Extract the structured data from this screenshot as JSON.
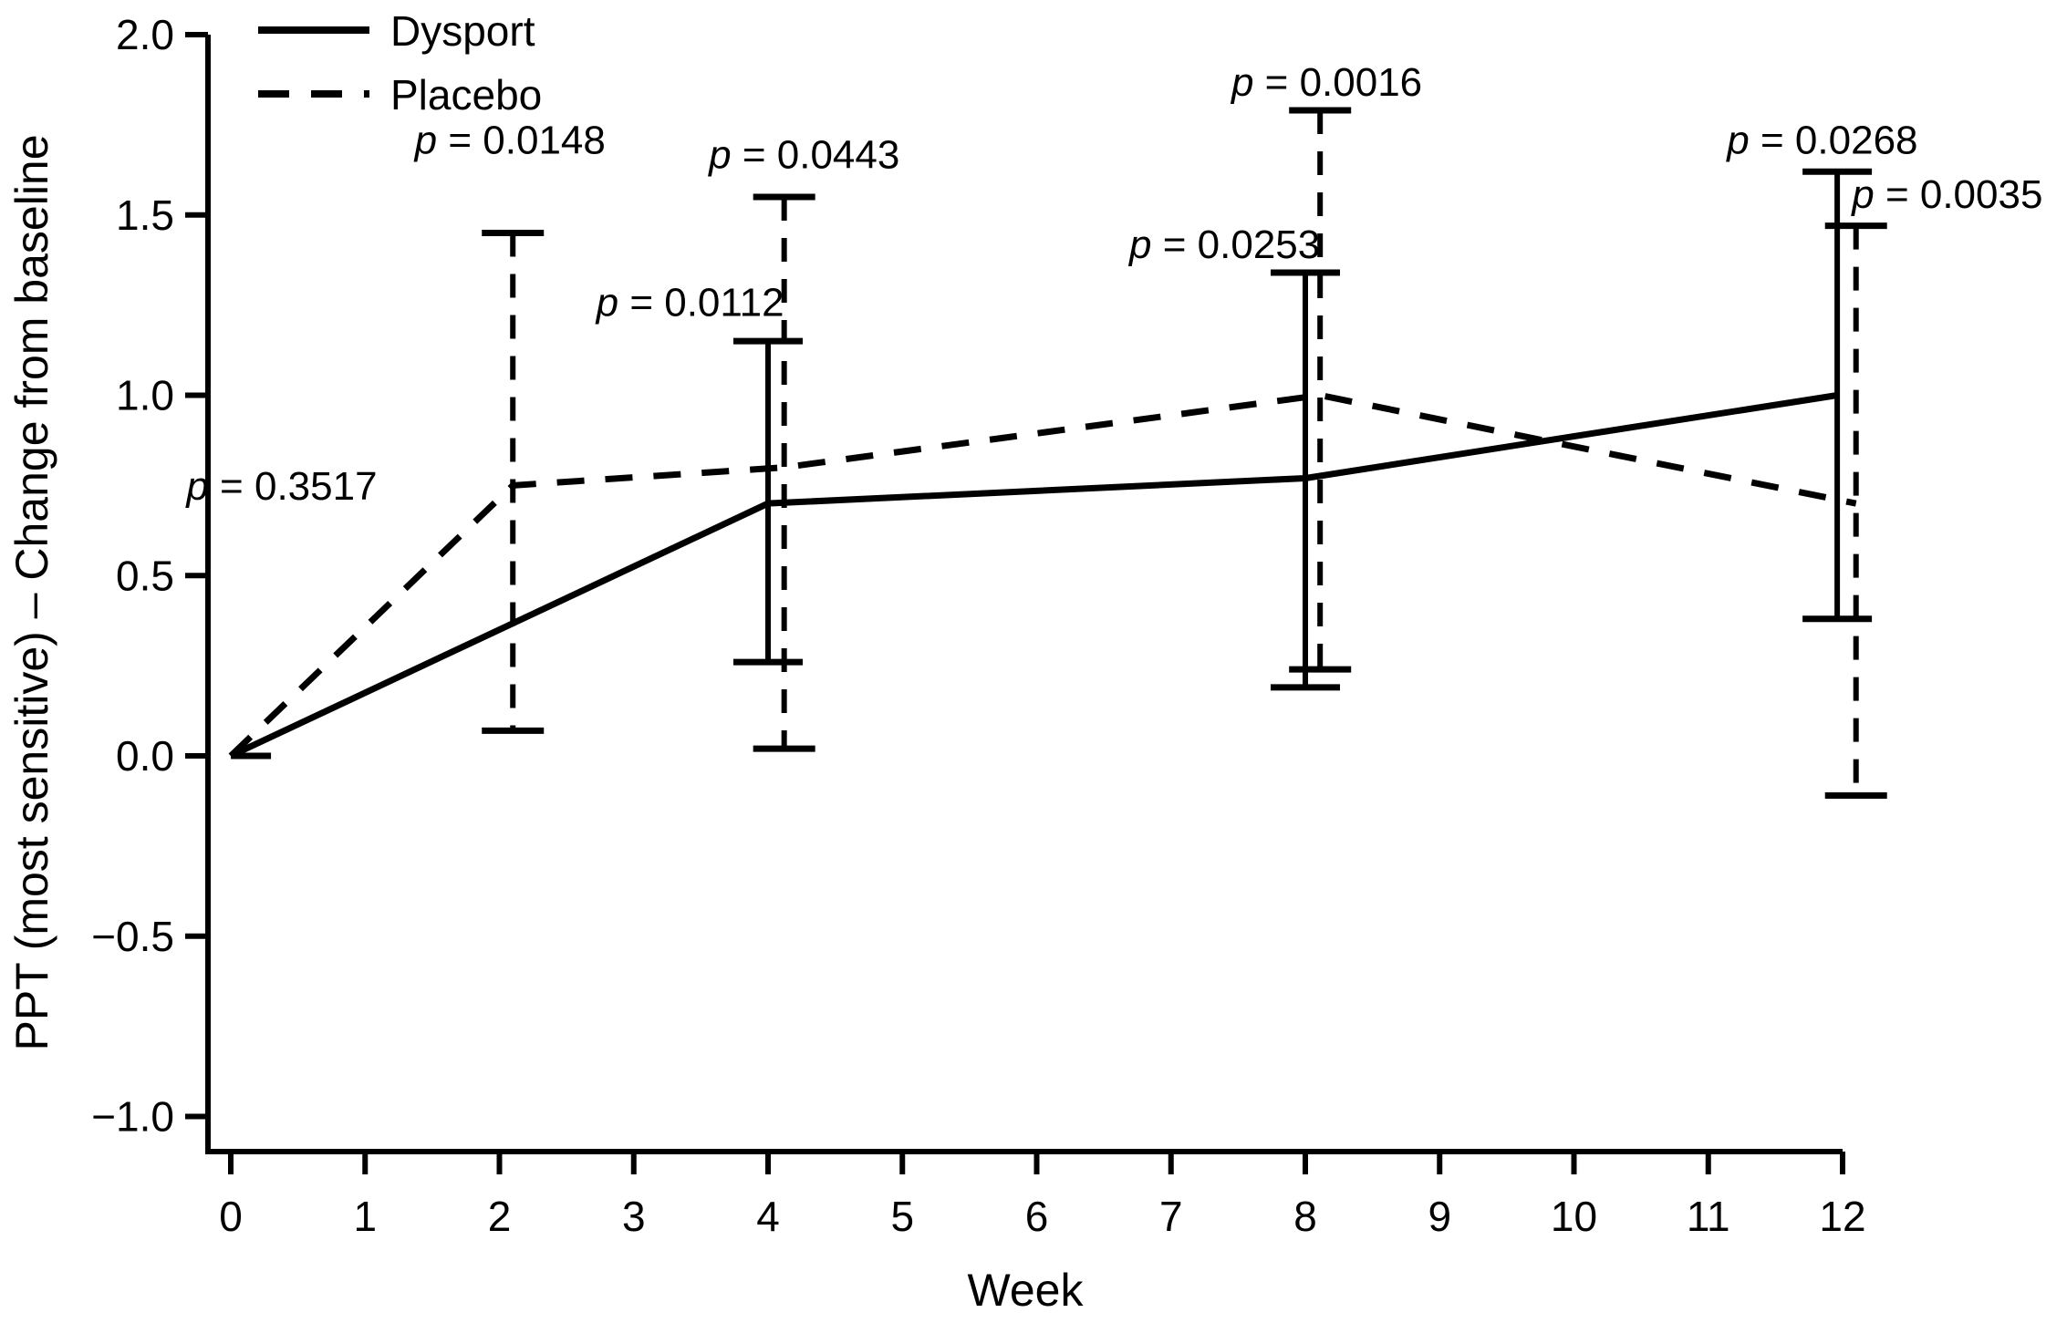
{
  "figure": {
    "background": "#ffffff",
    "ink_color": "#000000"
  },
  "legend": {
    "position": "top-left",
    "items": [
      {
        "label": "Dysport",
        "line_style": "solid"
      },
      {
        "label": "Placebo",
        "line_style": "dashed"
      }
    ]
  },
  "axes": {
    "x": {
      "label": "Week",
      "min": 0,
      "max": 12,
      "tick_step": 1,
      "tick_labels": [
        "0",
        "1",
        "2",
        "3",
        "4",
        "5",
        "6",
        "7",
        "8",
        "9",
        "10",
        "11",
        "12"
      ]
    },
    "y": {
      "label": "PPT (most sensitive) – Change from baseline",
      "min": -1.0,
      "max": 2.0,
      "tick_step": 0.5,
      "tick_labels": [
        "2.0",
        "1.5",
        "1.0",
        "0.5",
        "0.0",
        "−0.5",
        "−1.0"
      ]
    }
  },
  "chart_data": {
    "type": "line",
    "title": "",
    "xlabel": "Week",
    "ylabel": "PPT (most sensitive) – Change from baseline",
    "xlim": [
      0,
      12
    ],
    "ylim": [
      -1.0,
      2.0
    ],
    "grid": false,
    "legend_position": "top-left",
    "series": [
      {
        "name": "Dysport",
        "style": "solid",
        "x": [
          0,
          4,
          8,
          12
        ],
        "y": [
          0.0,
          0.7,
          0.77,
          1.0
        ],
        "x_offsets": [
          0,
          0,
          0,
          -0.04
        ],
        "error_bars": [
          {
            "x": 4,
            "x_offset": 0,
            "lo": 0.26,
            "hi": 1.15,
            "p_value": "p = 0.0112"
          },
          {
            "x": 8,
            "x_offset": 0,
            "lo": 0.19,
            "hi": 1.34,
            "p_value": "p = 0.0253"
          },
          {
            "x": 12,
            "x_offset": -0.04,
            "lo": 0.38,
            "hi": 1.62,
            "p_value": "p = 0.0268"
          }
        ]
      },
      {
        "name": "Placebo",
        "style": "dashed",
        "x": [
          0,
          2,
          4,
          8,
          12
        ],
        "y": [
          0.0,
          0.75,
          0.8,
          1.0,
          0.7
        ],
        "x_offsets": [
          0,
          0.1,
          0.12,
          0.11,
          0.1
        ],
        "error_bars": [
          {
            "x": 2,
            "x_offset": 0.1,
            "lo": 0.07,
            "hi": 1.45,
            "p_value": "p = 0.0148"
          },
          {
            "x": 4,
            "x_offset": 0.12,
            "lo": 0.02,
            "hi": 1.55,
            "p_value": "p = 0.0443"
          },
          {
            "x": 8,
            "x_offset": 0.11,
            "lo": 0.24,
            "hi": 1.79,
            "p_value": "p = 0.0016"
          },
          {
            "x": 12,
            "x_offset": 0.1,
            "lo": -0.11,
            "hi": 1.47,
            "p_value": "p = 0.0035"
          }
        ]
      }
    ],
    "annotations": [
      {
        "text": "p = 0.3517",
        "week": 0.38,
        "value": 0.71
      },
      {
        "text": "p = 0.0148",
        "week": 2.08,
        "value": 1.67
      },
      {
        "text": "p = 0.0112",
        "week": 3.42,
        "value": 1.22
      },
      {
        "text": "p = 0.0443",
        "week": 4.27,
        "value": 1.63
      },
      {
        "text": "p = 0.0253",
        "week": 7.4,
        "value": 1.38
      },
      {
        "text": "p = 0.0016",
        "week": 8.16,
        "value": 1.83
      },
      {
        "text": "p = 0.0268",
        "week": 11.85,
        "value": 1.67
      },
      {
        "text": "p = 0.0035",
        "week": 12.78,
        "value": 1.52
      }
    ],
    "baseline_cap": {
      "week": 0.15,
      "value": 0.0
    }
  }
}
